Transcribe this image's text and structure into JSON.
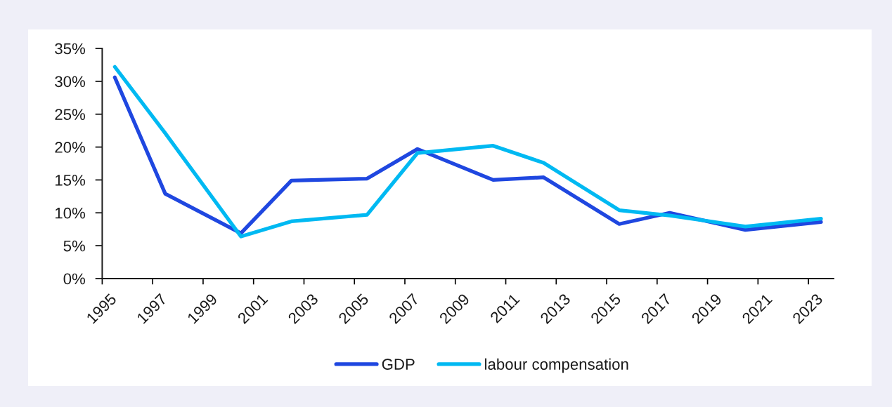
{
  "chart_data": {
    "type": "line",
    "series": [
      {
        "name": "GDP",
        "color": "#1f47e0",
        "x": [
          1995.5,
          1997.5,
          2000.5,
          2002.5,
          2005.5,
          2007.5,
          2010.5,
          2012.5,
          2015.5,
          2017.5,
          2020.5,
          2023.5
        ],
        "values": [
          30.6,
          12.9,
          6.9,
          14.9,
          15.2,
          19.7,
          15.0,
          15.4,
          8.3,
          10.0,
          7.4,
          8.6
        ]
      },
      {
        "name": "labour compensation",
        "color": "#00b9f2",
        "x": [
          1995.5,
          1997.5,
          2000.5,
          2002.5,
          2005.5,
          2007.5,
          2010.5,
          2012.5,
          2015.5,
          2017.5,
          2020.5,
          2023.5
        ],
        "values": [
          32.2,
          22.1,
          6.4,
          8.7,
          9.7,
          19.1,
          20.2,
          17.6,
          10.4,
          9.6,
          7.9,
          9.1
        ]
      }
    ],
    "xlim": [
      1995,
      2024
    ],
    "xticks": [
      1995,
      1997,
      1999,
      2001,
      2003,
      2005,
      2007,
      2009,
      2011,
      2013,
      2015,
      2017,
      2019,
      2021,
      2023
    ],
    "ylim": [
      0,
      35
    ],
    "yticks": [
      {
        "value": 0,
        "label": "0%"
      },
      {
        "value": 5,
        "label": "5%"
      },
      {
        "value": 10,
        "label": "10%"
      },
      {
        "value": 15,
        "label": "15%"
      },
      {
        "value": 20,
        "label": "20%"
      },
      {
        "value": 25,
        "label": "25%"
      },
      {
        "value": 30,
        "label": "30%"
      },
      {
        "value": 35,
        "label": "35%"
      }
    ],
    "legend": "bottom"
  }
}
